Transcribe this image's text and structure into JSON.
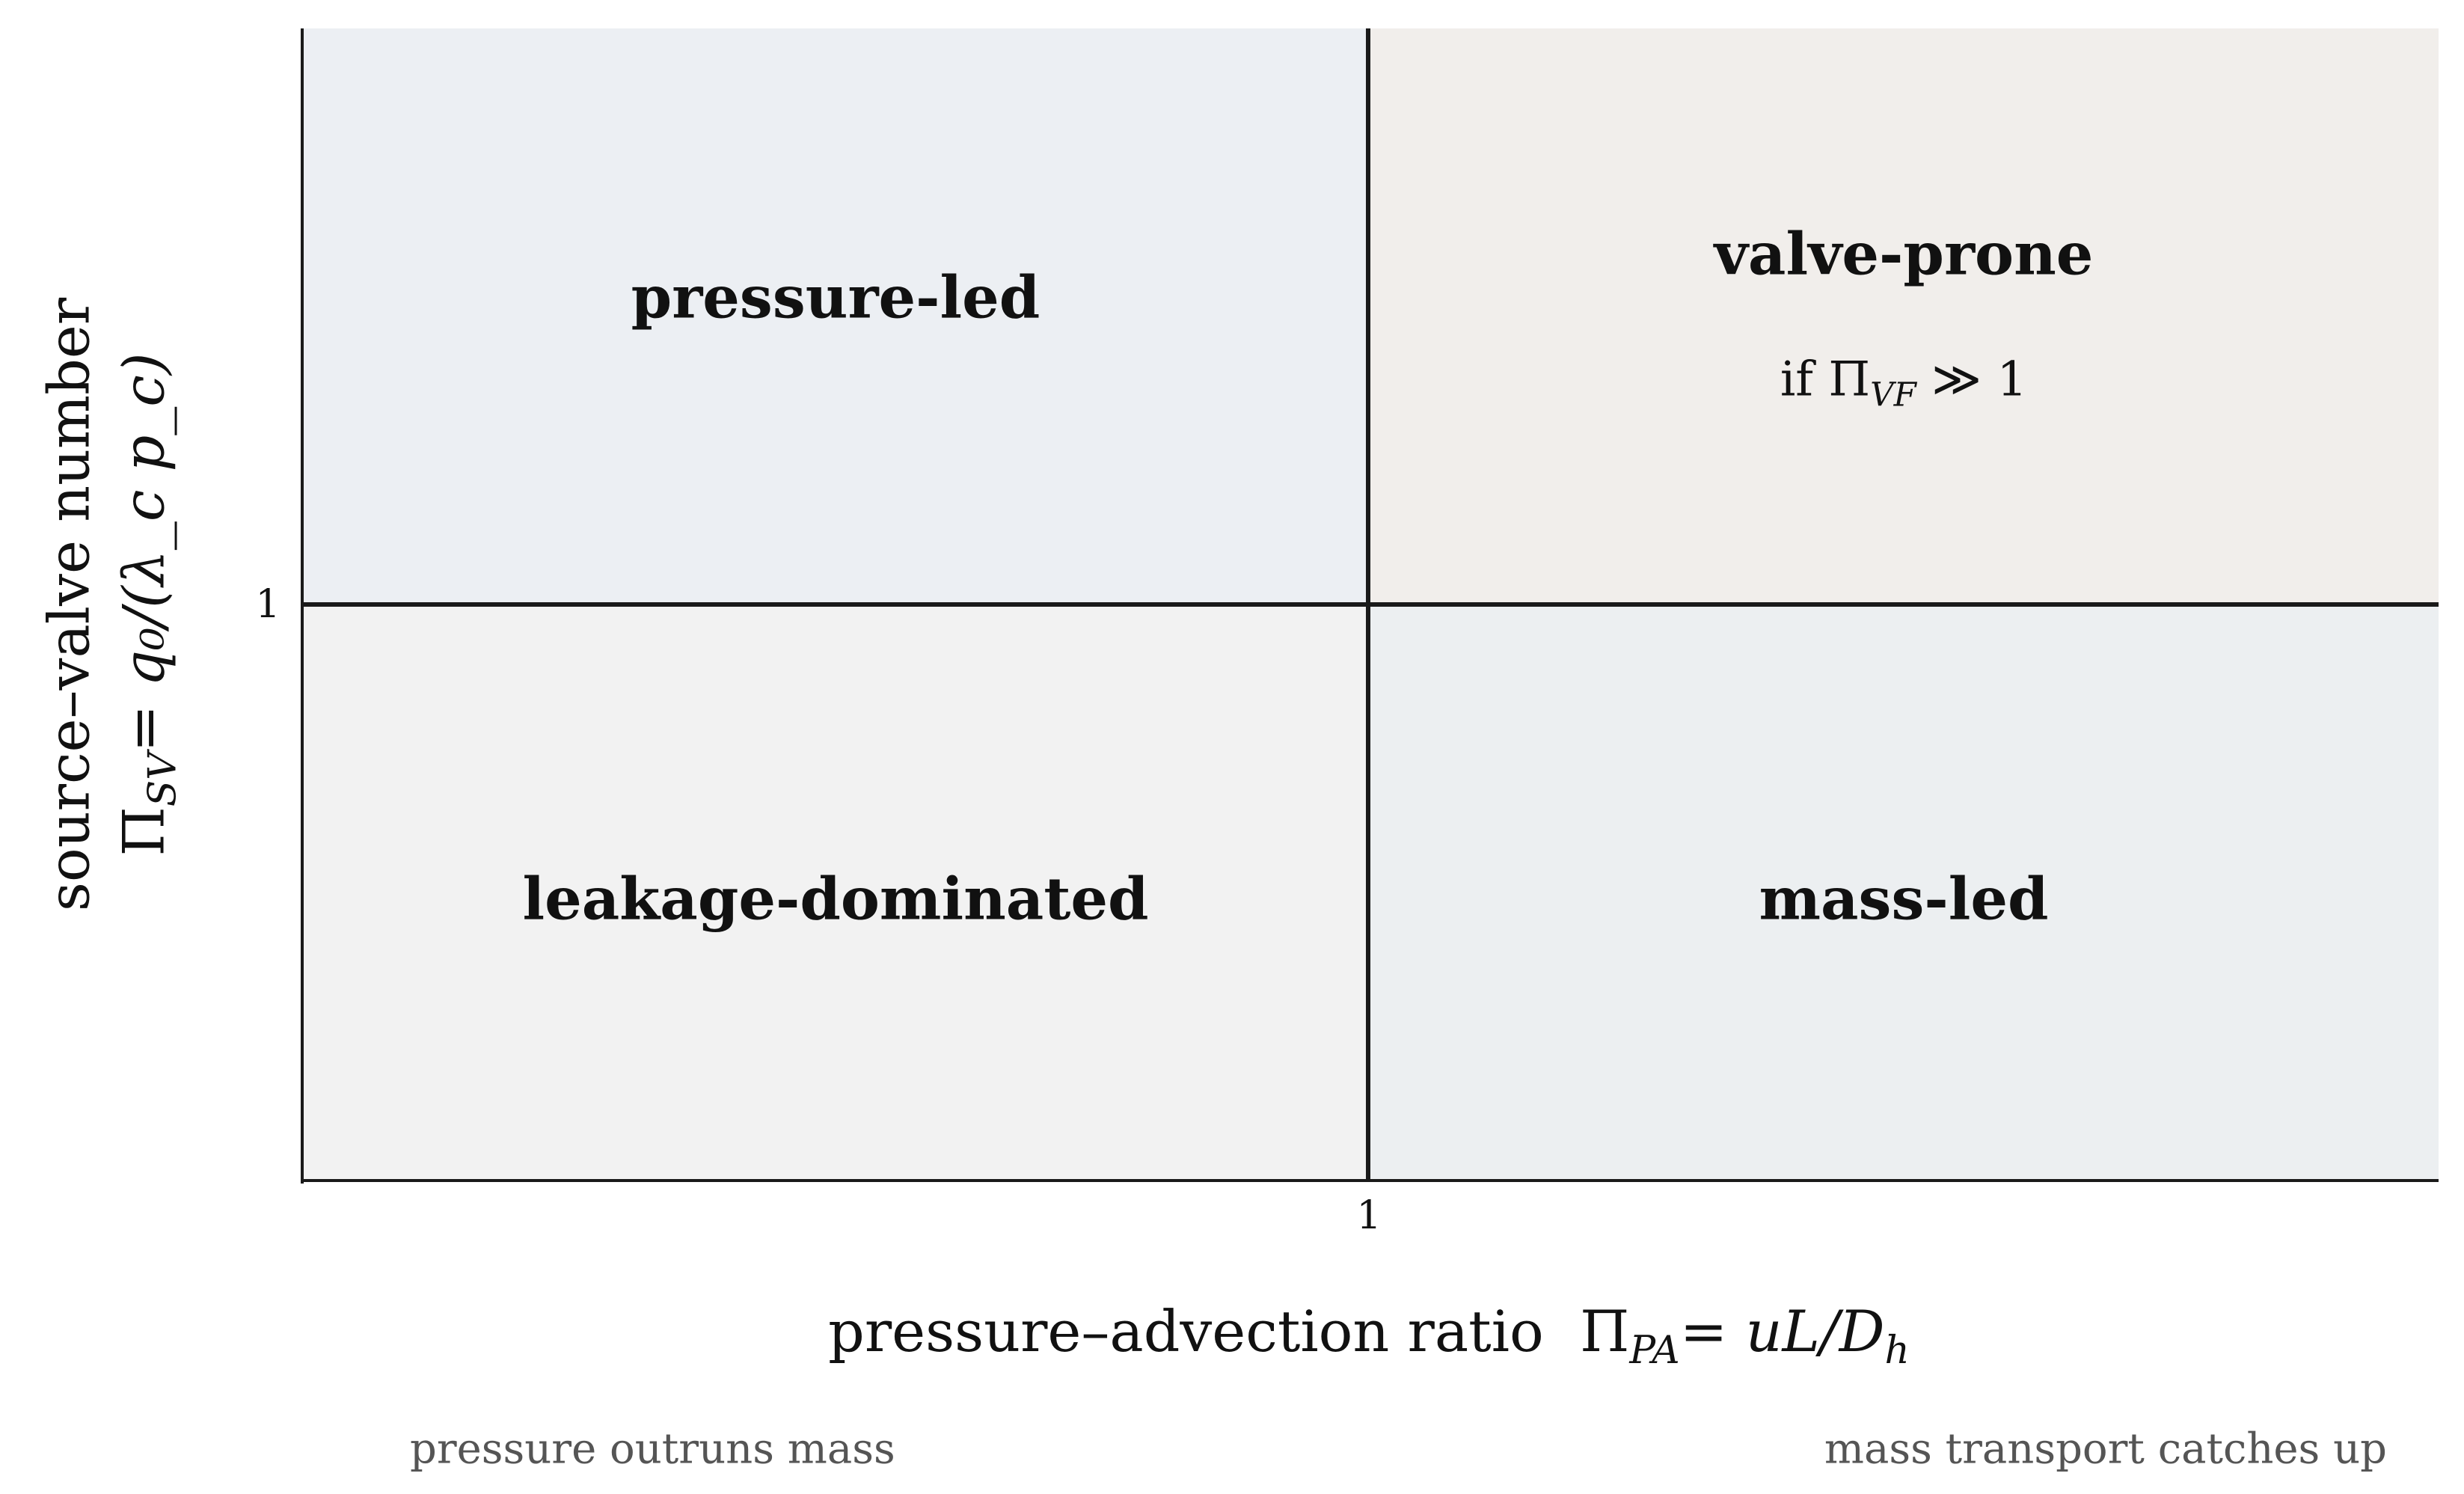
{
  "regions": {
    "top_left": "pressure-led",
    "top_right": "valve-prone",
    "top_right_condition": "if Π_VF ≫ 1",
    "bottom_left": "leakage-dominated",
    "bottom_right": "mass-led"
  },
  "ticks": {
    "x_threshold": "1",
    "y_threshold": "1"
  },
  "x_axis": {
    "label": "pressure–advection ratio",
    "formula_symbol": "Π",
    "formula_subscript": "PA",
    "formula_rhs": "= uL/D",
    "formula_rhs_subscript": "h"
  },
  "y_axis": {
    "label": "source–valve number",
    "formula_symbol": "Π",
    "formula_subscript": "SV",
    "formula_rhs": "= q₀/(λ_c p_c)"
  },
  "annotations": {
    "left": "pressure outruns mass",
    "right": "mass transport catches up"
  },
  "colors": {
    "top_left": "#ECEFF3",
    "top_right": "#F1EEEB",
    "bottom_left": "#F2F2F2",
    "bottom_right": "#ECEFF1"
  }
}
